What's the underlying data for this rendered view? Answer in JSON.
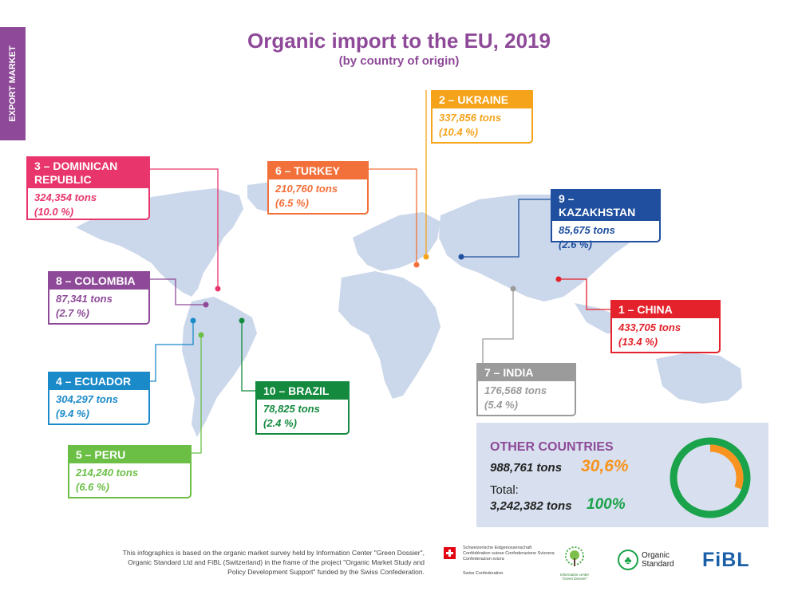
{
  "side_tab": "EXPORT MARKET",
  "title": "Organic import to the EU, 2019",
  "subtitle": "(by country of origin)",
  "countries": [
    {
      "id": "ukraine",
      "title": "2 – UKRAINE",
      "tons": "337,856 tons",
      "pct": "(10.4 %)",
      "color": "#f5a31a"
    },
    {
      "id": "dominican",
      "title": "3 – DOMINICAN REPUBLIC",
      "tons": "324,354 tons",
      "pct": "(10.0 %)",
      "color": "#e8366c"
    },
    {
      "id": "turkey",
      "title": "6 – TURKEY",
      "tons": "210,760 tons",
      "pct": "(6.5 %)",
      "color": "#f2703a"
    },
    {
      "id": "kazakhstan",
      "title": "9 – KAZAKHSTAN",
      "tons": "85,675 tons",
      "pct": "(2.6 %)",
      "color": "#1f4f9e"
    },
    {
      "id": "colombia",
      "title": "8 – COLOMBIA",
      "tons": "87,341 tons",
      "pct": "(2.7 %)",
      "color": "#8e4a98"
    },
    {
      "id": "china",
      "title": "1 – CHINA",
      "tons": "433,705 tons",
      "pct": "(13.4 %)",
      "color": "#e3222b"
    },
    {
      "id": "india",
      "title": "7 – INDIA",
      "tons": "176,568 tons",
      "pct": "(5.4 %)",
      "color": "#9b9b9b"
    },
    {
      "id": "ecuador",
      "title": "4 – ECUADOR",
      "tons": "304,297 tons",
      "pct": "(9.4 %)",
      "color": "#1b8ac9"
    },
    {
      "id": "brazil",
      "title": "10 – BRAZIL",
      "tons": "78,825 tons",
      "pct": "(2.4 %)",
      "color": "#138a3e"
    },
    {
      "id": "peru",
      "title": "5 – PERU",
      "tons": "214,240 tons",
      "pct": "(6.6 %)",
      "color": "#6bbf45"
    }
  ],
  "other": {
    "heading": "OTHER COUNTRIES",
    "tons": "988,761 tons",
    "pct": "30,6%",
    "total_label": "Total:",
    "total_tons": "3,242,382 tons",
    "total_pct": "100%",
    "share_fraction": 0.306,
    "color_share": "#f7931e",
    "color_total": "#1aa34a"
  },
  "chart_data": {
    "type": "bar",
    "title": "Organic import to the EU, 2019",
    "subtitle": "(by country of origin)",
    "categories": [
      "China",
      "Ukraine",
      "Dominican Republic",
      "Ecuador",
      "Peru",
      "Turkey",
      "India",
      "Colombia",
      "Kazakhstan",
      "Brazil",
      "Other countries"
    ],
    "values": [
      433705,
      337856,
      324354,
      304297,
      214240,
      210760,
      176568,
      87341,
      85675,
      78825,
      988761
    ],
    "shares_percent": [
      13.4,
      10.4,
      10.0,
      9.4,
      6.6,
      6.5,
      5.4,
      2.7,
      2.6,
      2.4,
      30.6
    ],
    "total": 3242382,
    "units": "tons"
  },
  "footnote": "This infographics is based on the organic market survey held by Information Center \"Green Dossier\", Organic Standard Ltd and FiBL (Switzerland) in the frame of the project \"Organic Market Study and Policy Development Support\" funded by the Swiss Confederation.",
  "logos": {
    "swiss_lines": "Schweizerische Eidgenossenschaft Confédération suisse Confederazione Svizzera Confederaziun svizra",
    "swiss_caption": "Swiss Confederation",
    "green_dossier": "Information center \"Green Dossier\"",
    "organic_standard": "Organic Standard",
    "fibl": "FiBL"
  }
}
